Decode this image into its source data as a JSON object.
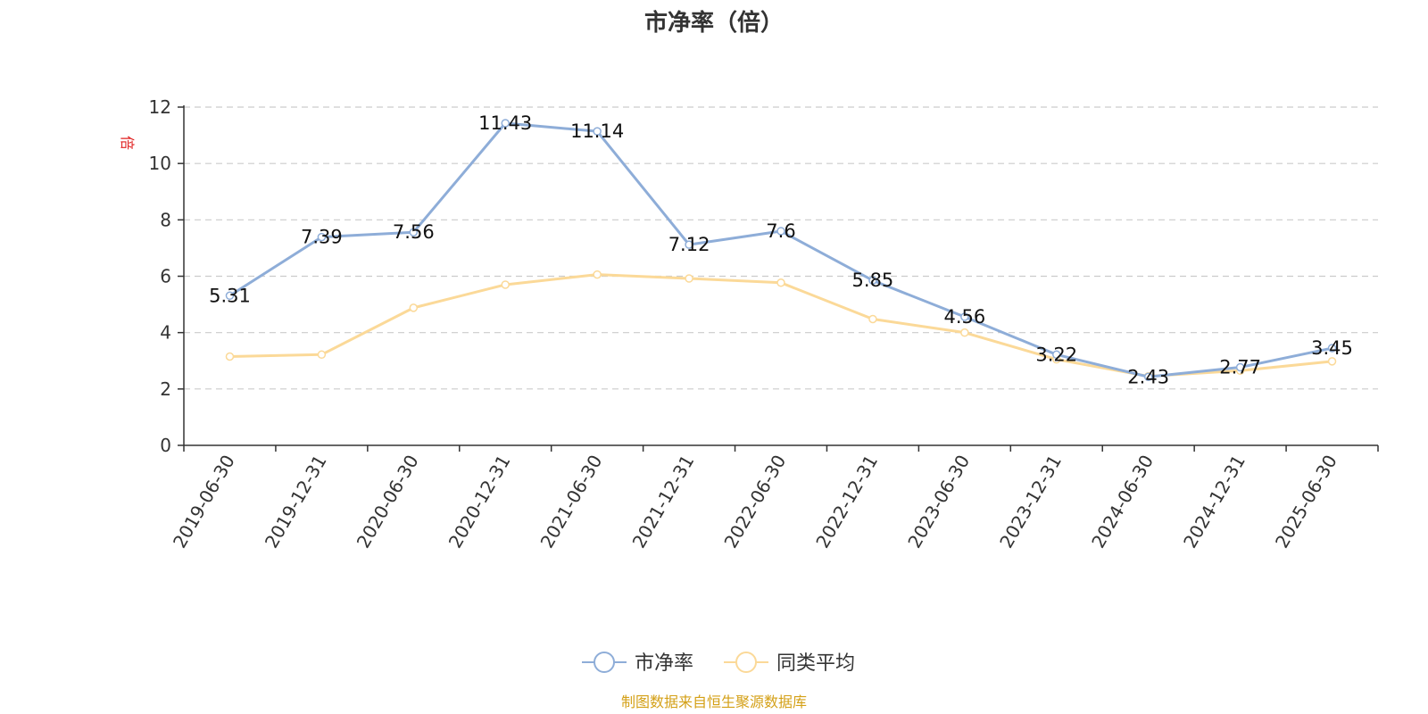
{
  "chart_data": {
    "type": "line",
    "title": "市净率（倍）",
    "ylabel": "倍",
    "xlabel": "",
    "categories": [
      "2019-06-30",
      "2019-12-31",
      "2020-06-30",
      "2020-12-31",
      "2021-06-30",
      "2021-12-31",
      "2022-06-30",
      "2022-12-31",
      "2023-06-30",
      "2023-12-31",
      "2024-06-30",
      "2024-12-31",
      "2025-06-30"
    ],
    "ylim": [
      0,
      12
    ],
    "yticks": [
      0,
      2,
      4,
      6,
      8,
      10,
      12
    ],
    "grid": true,
    "legend_position": "bottom",
    "series": [
      {
        "name": "市净率",
        "color": "#8eadd8",
        "values": [
          5.31,
          7.39,
          7.56,
          11.43,
          11.14,
          7.12,
          7.6,
          5.85,
          4.56,
          3.22,
          2.43,
          2.77,
          3.45
        ],
        "labels": [
          "5.31",
          "7.39",
          "7.56",
          "11.43",
          "11.14",
          "7.12",
          "7.6",
          "5.85",
          "4.56",
          "3.22",
          "2.43",
          "2.77",
          "3.45"
        ]
      },
      {
        "name": "同类平均",
        "color": "#fbd998",
        "values": [
          3.15,
          3.22,
          4.88,
          5.7,
          6.06,
          5.92,
          5.77,
          4.48,
          4.0,
          3.05,
          2.45,
          2.65,
          2.98
        ]
      }
    ]
  },
  "source": "制图数据来自恒生聚源数据库"
}
